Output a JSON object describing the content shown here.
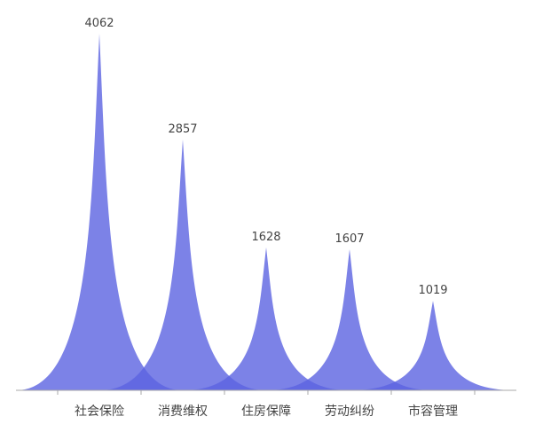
{
  "chart_data": {
    "type": "pictorial-spike",
    "categories": [
      "社会保险",
      "消费维权",
      "住房保障",
      "劳动纠纷",
      "市容管理"
    ],
    "values": [
      4062,
      2857,
      1628,
      1607,
      1019
    ],
    "color": "#5b63e1"
  }
}
